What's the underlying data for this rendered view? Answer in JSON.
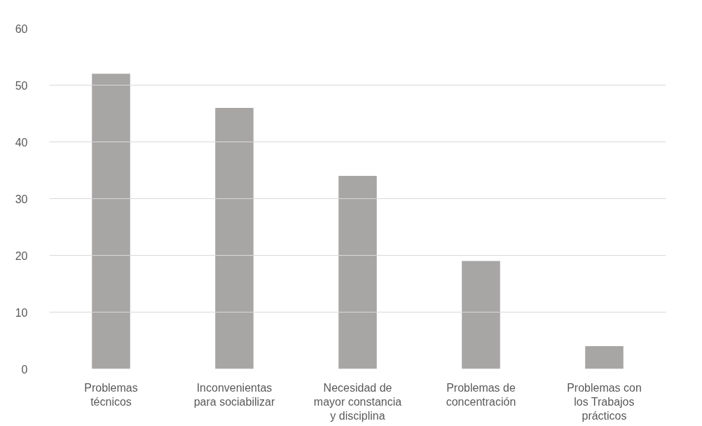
{
  "chart_data": {
    "type": "bar",
    "categories": [
      "Problemas\ntécnicos",
      "Inconvenientas\npara sociabilizar",
      "Necesidad de\nmayor constancia\ny disciplina",
      "Problemas de\nconcentración",
      "Problemas con\nlos Trabajos\nprácticos"
    ],
    "values": [
      52,
      46,
      34,
      19,
      4
    ],
    "color": "#a8a5a5",
    "ylim": [
      0,
      60
    ],
    "yticks": [
      0,
      10,
      20,
      30,
      40,
      50,
      60
    ],
    "grid": "y"
  }
}
